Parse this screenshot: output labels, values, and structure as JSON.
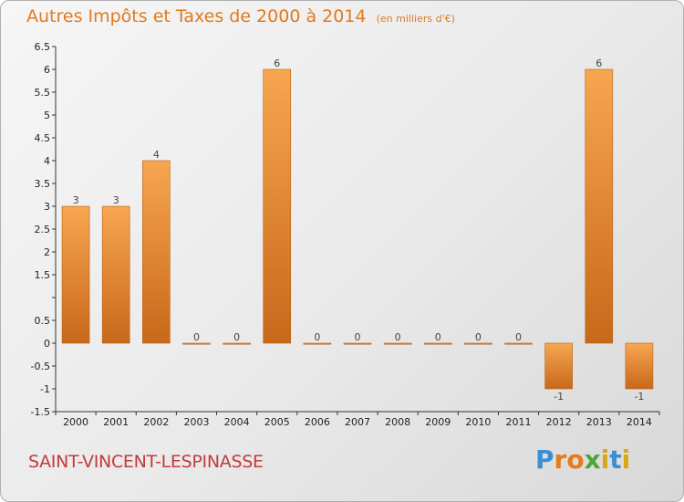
{
  "header": {
    "title": "Autres Impôts et Taxes de 2000 à 2014",
    "unit": "(en milliers d'€)"
  },
  "footer": {
    "town": "SAINT-VINCENT-LESPINASSE",
    "logo_text": "Proxiti"
  },
  "colors": {
    "title": "#e07a1c",
    "town": "#c23b3b",
    "bar_light": "#f7a650",
    "bar_dark": "#c8681a"
  },
  "chart_data": {
    "type": "bar",
    "title": "Autres Impôts et Taxes de 2000 à 2014",
    "xlabel": "",
    "ylabel": "",
    "categories": [
      "2000",
      "2001",
      "2002",
      "2003",
      "2004",
      "2005",
      "2006",
      "2007",
      "2008",
      "2009",
      "2010",
      "2011",
      "2012",
      "2013",
      "2014"
    ],
    "values": [
      3,
      3,
      4,
      0,
      0,
      6,
      0,
      0,
      0,
      0,
      0,
      0,
      -1,
      6,
      -1
    ],
    "data_labels": [
      "3",
      "3",
      "4",
      "0",
      "0",
      "6",
      "0",
      "0",
      "0",
      "0",
      "0",
      "0",
      "-1",
      "6",
      "-1"
    ],
    "ylim": [
      -1.5,
      6.5
    ],
    "yticks": [
      -1.5,
      -1,
      -0.5,
      0,
      0.5,
      1,
      1.5,
      2,
      2.5,
      3,
      3.5,
      4,
      4.5,
      5,
      5.5,
      6,
      6.5
    ],
    "ytick_labels": [
      "-1.5",
      "-1",
      "-0.5",
      "0",
      "0.5",
      "",
      "1.5",
      "2",
      "2.5",
      "3",
      "3.5",
      "4",
      "4.5",
      "5",
      "5.5",
      "6",
      "6.5"
    ],
    "grid": false,
    "legend": "none"
  }
}
